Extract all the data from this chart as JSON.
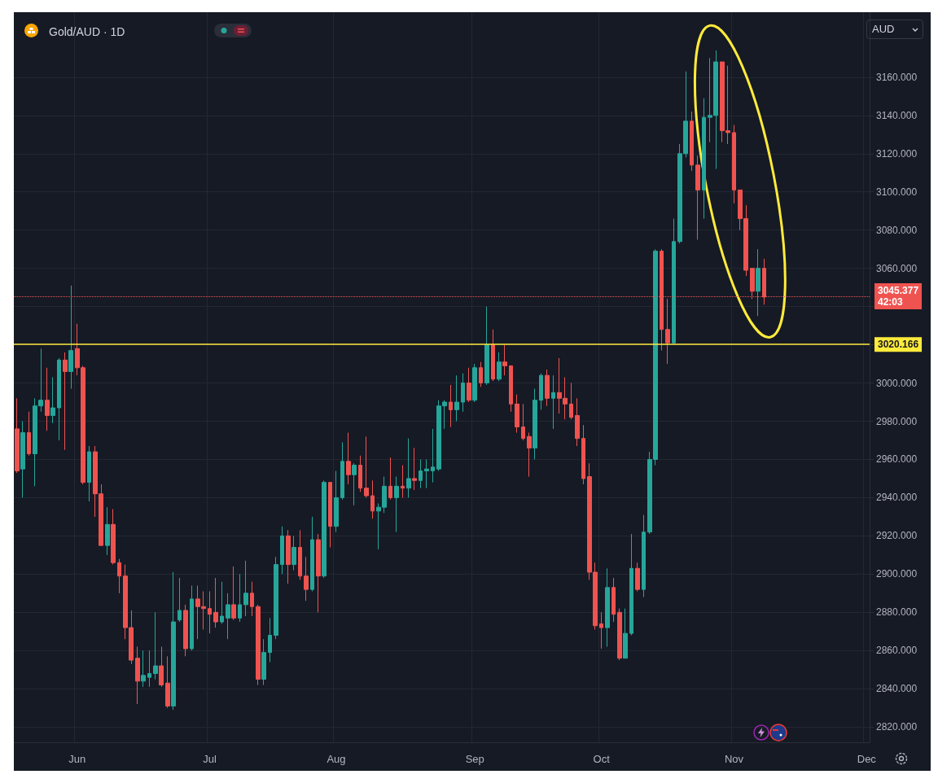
{
  "chart_data": {
    "type": "candlestick",
    "title": "Gold/AUD · 1D",
    "categories": [
      null,
      null,
      null,
      null,
      null,
      null,
      null,
      null,
      null,
      null,
      "Jun",
      null,
      null,
      null,
      null,
      null,
      null,
      null,
      null,
      null,
      null,
      null,
      null,
      null,
      null,
      null,
      null,
      null,
      null,
      null,
      null,
      null,
      "Jul",
      null,
      null,
      null,
      null,
      null,
      null,
      null,
      null,
      null,
      null,
      null,
      null,
      null,
      null,
      null,
      null,
      null,
      null,
      null,
      null,
      "Aug",
      null,
      null,
      null,
      null,
      null,
      null,
      null,
      null,
      null,
      null,
      null,
      null,
      null,
      null,
      null,
      null,
      null,
      null,
      null,
      null,
      null,
      null,
      "Sep",
      null,
      null,
      null,
      null,
      null,
      null,
      null,
      null,
      null,
      null,
      null,
      null,
      null,
      null,
      null,
      null,
      null,
      null,
      null,
      null,
      "Oct",
      null,
      null,
      null,
      null,
      null,
      null,
      null,
      null,
      null,
      null,
      null,
      null,
      null,
      null,
      null,
      null,
      null,
      null,
      null,
      null,
      null,
      "Nov",
      null,
      null,
      null,
      null,
      null,
      null,
      null,
      null,
      null,
      null,
      null,
      null,
      null,
      null,
      null,
      null,
      null,
      null,
      null,
      null,
      null,
      "Dec"
    ],
    "ohlc": [
      [
        2976,
        2992,
        2953,
        2954
      ],
      [
        2955,
        2980,
        2940,
        2974
      ],
      [
        2974,
        2985,
        2962,
        2963
      ],
      [
        2963,
        2992,
        2946,
        2988
      ],
      [
        2988,
        3018,
        2985,
        2991
      ],
      [
        2991,
        3008,
        2975,
        2983
      ],
      [
        2983,
        3003,
        2979,
        2987
      ],
      [
        2987,
        3013,
        2970,
        3012
      ],
      [
        3012,
        3016,
        2965,
        3006
      ],
      [
        3006,
        3051,
        2997,
        3017
      ],
      [
        3018,
        3031,
        3004,
        3008
      ],
      [
        3008,
        3009,
        2947,
        2948
      ],
      [
        2948,
        2967,
        2938,
        2964
      ],
      [
        2964,
        2967,
        2930,
        2942
      ],
      [
        2942,
        2947,
        2915,
        2915
      ],
      [
        2915,
        2935,
        2910,
        2926
      ],
      [
        2926,
        2934,
        2905,
        2906
      ],
      [
        2906,
        2908,
        2890,
        2899
      ],
      [
        2899,
        2905,
        2866,
        2872
      ],
      [
        2872,
        2881,
        2853,
        2855
      ],
      [
        2856,
        2862,
        2832,
        2844
      ],
      [
        2844,
        2860,
        2841,
        2847
      ],
      [
        2846,
        2860,
        2841,
        2848
      ],
      [
        2848,
        2880,
        2845,
        2852
      ],
      [
        2852,
        2862,
        2841,
        2842
      ],
      [
        2843,
        2857,
        2830,
        2831
      ],
      [
        2831,
        2901,
        2829,
        2875
      ],
      [
        2876,
        2898,
        2875,
        2881
      ],
      [
        2881,
        2884,
        2857,
        2861
      ],
      [
        2861,
        2894,
        2860,
        2887
      ],
      [
        2887,
        2894,
        2866,
        2883
      ],
      [
        2883,
        2891,
        2871,
        2882
      ],
      [
        2882,
        2891,
        2869,
        2879
      ],
      [
        2880,
        2898,
        2872,
        2875
      ],
      [
        2875,
        2896,
        2874,
        2878
      ],
      [
        2877,
        2890,
        2866,
        2884
      ],
      [
        2884,
        2904,
        2876,
        2877
      ],
      [
        2877,
        2900,
        2875,
        2884
      ],
      [
        2884,
        2907,
        2878,
        2890
      ],
      [
        2890,
        2896,
        2878,
        2883
      ],
      [
        2883,
        2884,
        2842,
        2845
      ],
      [
        2845,
        2866,
        2842,
        2859
      ],
      [
        2859,
        2877,
        2854,
        2868
      ],
      [
        2868,
        2909,
        2866,
        2905
      ],
      [
        2905,
        2925,
        2900,
        2920
      ],
      [
        2920,
        2923,
        2895,
        2905
      ],
      [
        2905,
        2920,
        2902,
        2914
      ],
      [
        2914,
        2923,
        2897,
        2899
      ],
      [
        2899,
        2909,
        2886,
        2892
      ],
      [
        2892,
        2930,
        2891,
        2918
      ],
      [
        2918,
        2921,
        2880,
        2899
      ],
      [
        2899,
        2949,
        2898,
        2948
      ],
      [
        2948,
        2948,
        2914,
        2925
      ],
      [
        2925,
        2954,
        2922,
        2940
      ],
      [
        2940,
        2969,
        2939,
        2959
      ],
      [
        2959,
        2974,
        2947,
        2952
      ],
      [
        2952,
        2958,
        2936,
        2957
      ],
      [
        2957,
        2962,
        2943,
        2945
      ],
      [
        2945,
        2972,
        2940,
        2941
      ],
      [
        2941,
        2949,
        2929,
        2933
      ],
      [
        2933,
        2937,
        2913,
        2935
      ],
      [
        2935,
        2951,
        2932,
        2946
      ],
      [
        2946,
        2961,
        2939,
        2940
      ],
      [
        2940,
        2951,
        2922,
        2946
      ],
      [
        2946,
        2957,
        2940,
        2945
      ],
      [
        2945,
        2971,
        2940,
        2950
      ],
      [
        2950,
        2966,
        2944,
        2949
      ],
      [
        2949,
        2960,
        2945,
        2954
      ],
      [
        2954,
        2960,
        2945,
        2955
      ],
      [
        2954,
        2976,
        2948,
        2956
      ],
      [
        2955,
        2991,
        2954,
        2988
      ],
      [
        2988,
        2991,
        2976,
        2990
      ],
      [
        2990,
        2999,
        2977,
        2986
      ],
      [
        2986,
        3004,
        2980,
        2990
      ],
      [
        2990,
        3005,
        2985,
        3000
      ],
      [
        3000,
        3008,
        2990,
        2991
      ],
      [
        2991,
        3010,
        2990,
        3008
      ],
      [
        3008,
        3011,
        2998,
        3000
      ],
      [
        3000,
        3040,
        2999,
        3020
      ],
      [
        3020,
        3028,
        3001,
        3002
      ],
      [
        3002,
        3016,
        3001,
        3011
      ],
      [
        3011,
        3020,
        3004,
        3009
      ],
      [
        3009,
        3009,
        2985,
        2989
      ],
      [
        2989,
        2994,
        2974,
        2977
      ],
      [
        2977,
        2989,
        2970,
        2971
      ],
      [
        2972,
        2974,
        2951,
        2966
      ],
      [
        2966,
        2997,
        2960,
        2991
      ],
      [
        2991,
        3005,
        2986,
        3004
      ],
      [
        3004,
        3007,
        2988,
        2992
      ],
      [
        2992,
        3004,
        2976,
        2995
      ],
      [
        2995,
        3013,
        2984,
        2992
      ],
      [
        2992,
        3003,
        2981,
        2989
      ],
      [
        2989,
        3000,
        2981,
        2982
      ],
      [
        2983,
        2992,
        2967,
        2971
      ],
      [
        2971,
        2978,
        2947,
        2950
      ],
      [
        2951,
        2958,
        2897,
        2901
      ],
      [
        2901,
        2906,
        2871,
        2873
      ],
      [
        2874,
        2880,
        2861,
        2872
      ],
      [
        2872,
        2903,
        2862,
        2893
      ],
      [
        2893,
        2898,
        2875,
        2879
      ],
      [
        2880,
        2882,
        2855,
        2856
      ],
      [
        2856,
        2882,
        2856,
        2869
      ],
      [
        2869,
        2921,
        2868,
        2903
      ],
      [
        2903,
        2906,
        2891,
        2892
      ],
      [
        2892,
        2931,
        2888,
        2922
      ],
      [
        2922,
        2964,
        2921,
        2960
      ],
      [
        2960,
        3070,
        2957,
        3069
      ],
      [
        3069,
        3070,
        3017,
        3028
      ],
      [
        3028,
        3044,
        3010,
        3021
      ],
      [
        3021,
        3086,
        3020,
        3074
      ],
      [
        3074,
        3125,
        3073,
        3120
      ],
      [
        3120,
        3163,
        3118,
        3137
      ],
      [
        3137,
        3142,
        3111,
        3114
      ],
      [
        3114,
        3119,
        3075,
        3101
      ],
      [
        3101,
        3149,
        3086,
        3139
      ],
      [
        3139,
        3170,
        3126,
        3140
      ],
      [
        3140,
        3174,
        3112,
        3168
      ],
      [
        3168,
        3168,
        3126,
        3132
      ],
      [
        3132,
        3166,
        3125,
        3131
      ],
      [
        3131,
        3135,
        3094,
        3101
      ],
      [
        3101,
        3101,
        3080,
        3086
      ],
      [
        3086,
        3093,
        3056,
        3059
      ],
      [
        3060,
        3060,
        3044,
        3048
      ],
      [
        3048,
        3070,
        3035,
        3060
      ],
      [
        3060,
        3065,
        3041,
        3045
      ],
      null,
      null,
      null,
      null,
      null,
      null,
      null,
      null,
      null,
      null,
      null,
      null,
      null,
      null,
      null,
      null,
      null
    ],
    "colors": [
      "#ef5350",
      "#26a69a",
      "#ef5350",
      "#26a69a",
      "#26a69a",
      "#ef5350",
      "#26a69a",
      "#26a69a",
      "#ef5350",
      "#26a69a",
      "#ef5350",
      "#ef5350",
      "#26a69a",
      "#ef5350",
      "#ef5350",
      "#26a69a",
      "#ef5350",
      "#ef5350",
      "#ef5350",
      "#ef5350",
      "#ef5350",
      "#26a69a",
      "#26a69a",
      "#26a69a",
      "#ef5350",
      "#ef5350",
      "#26a69a",
      "#26a69a",
      "#ef5350",
      "#26a69a",
      "#ef5350",
      "#ef5350",
      "#ef5350",
      "#ef5350",
      "#26a69a",
      "#26a69a",
      "#ef5350",
      "#26a69a",
      "#26a69a",
      "#ef5350",
      "#ef5350",
      "#26a69a",
      "#26a69a",
      "#26a69a",
      "#26a69a",
      "#ef5350",
      "#26a69a",
      "#ef5350",
      "#ef5350",
      "#26a69a",
      "#ef5350",
      "#26a69a",
      "#ef5350",
      "#26a69a",
      "#26a69a",
      "#ef5350",
      "#26a69a",
      "#ef5350",
      "#ef5350",
      "#ef5350",
      "#26a69a",
      "#26a69a",
      "#ef5350",
      "#26a69a",
      "#ef5350",
      "#26a69a",
      "#ef5350",
      "#26a69a",
      "#26a69a",
      "#26a69a",
      "#26a69a",
      "#26a69a",
      "#ef5350",
      "#26a69a",
      "#26a69a",
      "#ef5350",
      "#26a69a",
      "#ef5350",
      "#26a69a",
      "#ef5350",
      "#26a69a",
      "#ef5350",
      "#ef5350",
      "#ef5350",
      "#ef5350",
      "#ef5350",
      "#26a69a",
      "#26a69a",
      "#ef5350",
      "#26a69a",
      "#ef5350",
      "#ef5350",
      "#ef5350",
      "#ef5350",
      "#ef5350",
      "#ef5350",
      "#ef5350",
      "#ef5350",
      "#26a69a",
      "#ef5350",
      "#ef5350",
      "#26a69a",
      "#26a69a",
      "#ef5350",
      "#26a69a",
      "#26a69a",
      "#26a69a",
      "#ef5350",
      "#ef5350",
      "#26a69a",
      "#26a69a",
      "#26a69a",
      "#ef5350",
      "#ef5350",
      "#26a69a",
      "#26a69a",
      "#26a69a",
      "#ef5350",
      "#ef5350",
      "#ef5350",
      "#ef5350",
      "#ef5350",
      "#ef5350",
      "#26a69a",
      "#ef5350",
      null,
      null,
      null,
      null,
      null,
      null,
      null,
      null,
      null,
      null,
      null,
      null,
      null,
      null,
      null,
      null,
      null
    ],
    "ylim": [
      2812,
      3194
    ],
    "yticks": [
      {
        "value": 2820,
        "label": "2820.000"
      },
      {
        "value": 2840,
        "label": "2840.000"
      },
      {
        "value": 2860,
        "label": "2860.000"
      },
      {
        "value": 2880,
        "label": "2880.000"
      },
      {
        "value": 2900,
        "label": "2900.000"
      },
      {
        "value": 2920,
        "label": "2920.000"
      },
      {
        "value": 2940,
        "label": "2940.000"
      },
      {
        "value": 2960,
        "label": "2960.000"
      },
      {
        "value": 2980,
        "label": "2980.000"
      },
      {
        "value": 3000,
        "label": "3000.000"
      },
      {
        "value": 3020,
        "label": null
      },
      {
        "value": 3040,
        "label": null
      },
      {
        "value": 3060,
        "label": "3060.000"
      },
      {
        "value": 3080,
        "label": "3080.000"
      },
      {
        "value": 3100,
        "label": "3100.000"
      },
      {
        "value": 3120,
        "label": "3120.000"
      },
      {
        "value": 3140,
        "label": "3140.000"
      },
      {
        "value": 3160,
        "label": "3160.000"
      }
    ],
    "ref_lines": [
      {
        "axis": "y",
        "value": 3020.166,
        "label": "3020.166",
        "color": "#ffeb3b",
        "line_style": "solid"
      },
      {
        "axis": "y",
        "value": 3045.377,
        "label": "3045.377\n42:03",
        "color": "#ef5350",
        "line_style": "dotted"
      }
    ],
    "annotations": [
      "AUD"
    ],
    "grid": true
  }
}
